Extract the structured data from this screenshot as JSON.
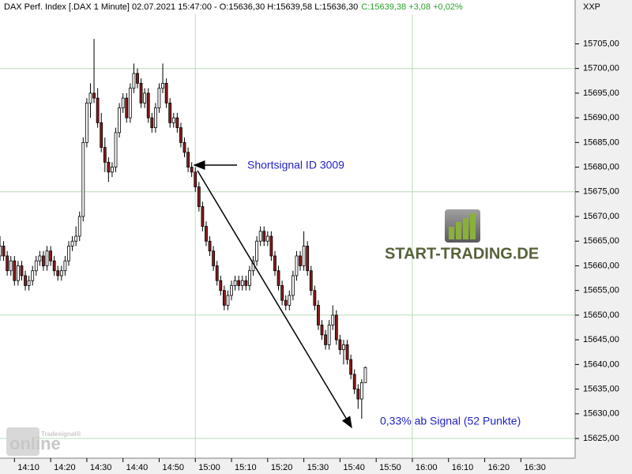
{
  "header": {
    "instrument": "DAX Perf. Index [.DAX  1 Minute] 02.07.2021 15:47:00 - O:15636,30 H:15639,58 L:15636,30",
    "change": "C:15639,38 +3,08 +0,02%",
    "symbol": "XXP"
  },
  "logo": {
    "text": "START-TRADING.DE"
  },
  "watermark": {
    "brand": "Tradesignal®",
    "text": "online"
  },
  "chart_data": {
    "type": "candlestick",
    "x": [
      "14:06",
      "14:07",
      "14:08",
      "14:09",
      "14:10",
      "14:11",
      "14:12",
      "14:13",
      "14:14",
      "14:15",
      "14:16",
      "14:17",
      "14:18",
      "14:19",
      "14:20",
      "14:21",
      "14:22",
      "14:23",
      "14:24",
      "14:25",
      "14:26",
      "14:27",
      "14:28",
      "14:29",
      "14:30",
      "14:31",
      "14:32",
      "14:33",
      "14:34",
      "14:35",
      "14:36",
      "14:37",
      "14:38",
      "14:39",
      "14:40",
      "14:41",
      "14:42",
      "14:43",
      "14:44",
      "14:45",
      "14:46",
      "14:47",
      "14:48",
      "14:49",
      "14:50",
      "14:51",
      "14:52",
      "14:53",
      "14:54",
      "14:55",
      "14:56",
      "14:57",
      "14:58",
      "14:59",
      "15:00",
      "15:01",
      "15:02",
      "15:03",
      "15:04",
      "15:05",
      "15:06",
      "15:07",
      "15:08",
      "15:09",
      "15:10",
      "15:11",
      "15:12",
      "15:13",
      "15:14",
      "15:15",
      "15:16",
      "15:17",
      "15:18",
      "15:19",
      "15:20",
      "15:21",
      "15:22",
      "15:23",
      "15:24",
      "15:25",
      "15:26",
      "15:27",
      "15:28",
      "15:29",
      "15:30",
      "15:31",
      "15:32",
      "15:33",
      "15:34",
      "15:35",
      "15:36",
      "15:37",
      "15:38",
      "15:39",
      "15:40",
      "15:41",
      "15:42",
      "15:43",
      "15:44",
      "15:45",
      "15:46",
      "15:47"
    ],
    "open": [
      15662,
      15664,
      15662,
      15659,
      15661,
      15657,
      15660,
      15658,
      15656,
      15657,
      15659,
      15661,
      15662,
      15660,
      15663,
      15661,
      15659,
      15658,
      15659,
      15661,
      15664,
      15665,
      15666,
      15670,
      15685,
      15693,
      15695,
      15694,
      15689,
      15684,
      15681,
      15679,
      15680,
      15687,
      15692,
      15694,
      15690,
      15696,
      15699,
      15697,
      15693,
      15695,
      15690,
      15688,
      15692,
      15696,
      15697,
      15693,
      15689,
      15690,
      15688,
      15685,
      15683,
      15680,
      15679,
      15676,
      15672,
      15668,
      15665,
      15663,
      15660,
      15657,
      15655,
      15652,
      15654,
      15656,
      15657,
      15656,
      15657,
      15656,
      15659,
      15661,
      15665,
      15667,
      15665,
      15666,
      15662,
      15659,
      15656,
      15653,
      15652,
      15654,
      15658,
      15662,
      15660,
      15664,
      15659,
      15655,
      15652,
      15648,
      15646,
      15644,
      15648,
      15650,
      15645,
      15643,
      15644,
      15641,
      15638,
      15635,
      15633,
      15636.3
    ],
    "high": [
      15666,
      15665,
      15663,
      15662,
      15662,
      15661,
      15661,
      15659,
      15658,
      15660,
      15662,
      15663,
      15663,
      15664,
      15664,
      15662,
      15660,
      15660,
      15662,
      15665,
      15666,
      15668,
      15671,
      15686,
      15694,
      15697,
      15706,
      15696,
      15691,
      15686,
      15682,
      15681,
      15688,
      15693,
      15695,
      15695,
      15697,
      15701,
      15700,
      15698,
      15696,
      15696,
      15691,
      15693,
      15697,
      15701,
      15698,
      15694,
      15691,
      15691,
      15689,
      15686,
      15684,
      15681,
      15680,
      15677,
      15673,
      15669,
      15666,
      15664,
      15661,
      15658,
      15656,
      15655,
      15657,
      15658,
      15658,
      15658,
      15658,
      15660,
      15662,
      15666,
      15668,
      15668,
      15667,
      15667,
      15663,
      15660,
      15657,
      15654,
      15655,
      15659,
      15663,
      15663,
      15667,
      15665,
      15660,
      15656,
      15653,
      15649,
      15647,
      15649,
      15652,
      15651,
      15646,
      15645,
      15645,
      15642,
      15639,
      15636,
      15637,
      15639.58
    ],
    "low": [
      15661,
      15661,
      15658,
      15658,
      15656,
      15656,
      15657,
      15655,
      15655,
      15656,
      15658,
      15660,
      15659,
      15659,
      15660,
      15658,
      15657,
      15657,
      15658,
      15660,
      15663,
      15664,
      15665,
      15669,
      15684,
      15690,
      15693,
      15688,
      15683,
      15679,
      15677,
      15678,
      15679,
      15686,
      15691,
      15689,
      15689,
      15695,
      15696,
      15692,
      15692,
      15689,
      15687,
      15687,
      15691,
      15695,
      15692,
      15688,
      15688,
      15687,
      15684,
      15682,
      15679,
      15678,
      15675,
      15671,
      15667,
      15664,
      15662,
      15659,
      15656,
      15654,
      15651,
      15651,
      15653,
      15655,
      15655,
      15655,
      15655,
      15655,
      15658,
      15660,
      15664,
      15664,
      15664,
      15661,
      15658,
      15655,
      15652,
      15651,
      15651,
      15653,
      15657,
      15659,
      15659,
      15658,
      15654,
      15651,
      15647,
      15645,
      15643,
      15643,
      15647,
      15644,
      15642,
      15640,
      15640,
      15637,
      15634,
      15631,
      15629,
      15636.3
    ],
    "close": [
      15664,
      15662,
      15659,
      15661,
      15657,
      15660,
      15658,
      15656,
      15657,
      15659,
      15661,
      15662,
      15660,
      15663,
      15661,
      15659,
      15658,
      15659,
      15661,
      15664,
      15665,
      15666,
      15670,
      15685,
      15693,
      15695,
      15694,
      15689,
      15684,
      15681,
      15679,
      15680,
      15687,
      15692,
      15694,
      15690,
      15696,
      15699,
      15697,
      15693,
      15695,
      15690,
      15688,
      15692,
      15696,
      15697,
      15693,
      15689,
      15690,
      15688,
      15685,
      15683,
      15680,
      15679,
      15676,
      15672,
      15668,
      15665,
      15663,
      15660,
      15657,
      15655,
      15652,
      15654,
      15656,
      15657,
      15656,
      15657,
      15656,
      15659,
      15661,
      15665,
      15667,
      15665,
      15666,
      15662,
      15659,
      15656,
      15653,
      15652,
      15654,
      15658,
      15662,
      15660,
      15664,
      15659,
      15655,
      15652,
      15648,
      15646,
      15644,
      15648,
      15650,
      15645,
      15643,
      15644,
      15641,
      15638,
      15635,
      15633,
      15636.3,
      15639.38
    ],
    "up_color": "#ffffff",
    "down_color": "#8b1a1a",
    "wick_color": "#000000",
    "xlim": [
      "14:06",
      "16:45"
    ],
    "xticks": [
      "14:10",
      "14:20",
      "14:30",
      "14:40",
      "14:50",
      "15:00",
      "15:10",
      "15:20",
      "15:30",
      "15:40",
      "15:50",
      "16:00",
      "16:10",
      "16:20",
      "16:30"
    ],
    "xgrid": [
      "15:00",
      "16:00"
    ],
    "ylim": [
      15621,
      15711
    ],
    "yticks": [
      {
        "value": 15625,
        "label": "15625,00"
      },
      {
        "value": 15630,
        "label": "15630,00"
      },
      {
        "value": 15635,
        "label": "15635,00"
      },
      {
        "value": 15640,
        "label": "15640,00"
      },
      {
        "value": 15645,
        "label": "15645,00"
      },
      {
        "value": 15650,
        "label": "15650,00"
      },
      {
        "value": 15655,
        "label": "15655,00"
      },
      {
        "value": 15660,
        "label": "15660,00"
      },
      {
        "value": 15665,
        "label": "15665,00"
      },
      {
        "value": 15670,
        "label": "15670,00"
      },
      {
        "value": 15675,
        "label": "15675,00"
      },
      {
        "value": 15680,
        "label": "15680,00"
      },
      {
        "value": 15685,
        "label": "15685,00"
      },
      {
        "value": 15690,
        "label": "15690,00"
      },
      {
        "value": 15695,
        "label": "15695,00"
      },
      {
        "value": 15700,
        "label": "15700,00"
      },
      {
        "value": 15705,
        "label": "15705,00"
      }
    ],
    "ygrid": [
      15625,
      15650,
      15675,
      15700
    ],
    "grid_color": "#b8dcb8",
    "annotations": [
      {
        "text": "Shortsignal ID 3009"
      },
      {
        "text": "0,33% ab Signal (52 Punkte)"
      }
    ]
  }
}
